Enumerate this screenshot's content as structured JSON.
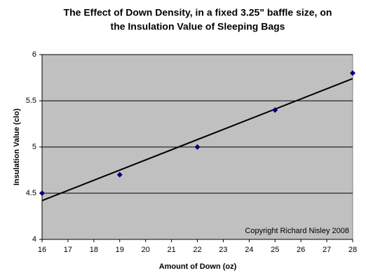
{
  "chart_data": {
    "type": "scatter",
    "title": [
      "The Effect of Down Density, in a fixed 3.25\" baffle size, on",
      "the Insulation Value of Sleeping Bags"
    ],
    "x_label": "Amount of Down (oz)",
    "y_label": "Insulation Value (clo)",
    "annotation": "Copyright Richard Nisley 2008",
    "x": [
      16,
      19,
      22,
      25,
      28
    ],
    "values": [
      4.5,
      4.7,
      5.0,
      5.4,
      5.8
    ],
    "color": "#000080",
    "trendline": "linear",
    "trendline_color": "#000000",
    "xlim": [
      16,
      28
    ],
    "xticks": [
      16,
      17,
      18,
      19,
      20,
      21,
      22,
      23,
      24,
      25,
      26,
      27,
      28
    ],
    "ylim": [
      4,
      6
    ],
    "yticks": [
      4,
      4.5,
      5,
      5.5,
      6
    ],
    "grid": true
  }
}
